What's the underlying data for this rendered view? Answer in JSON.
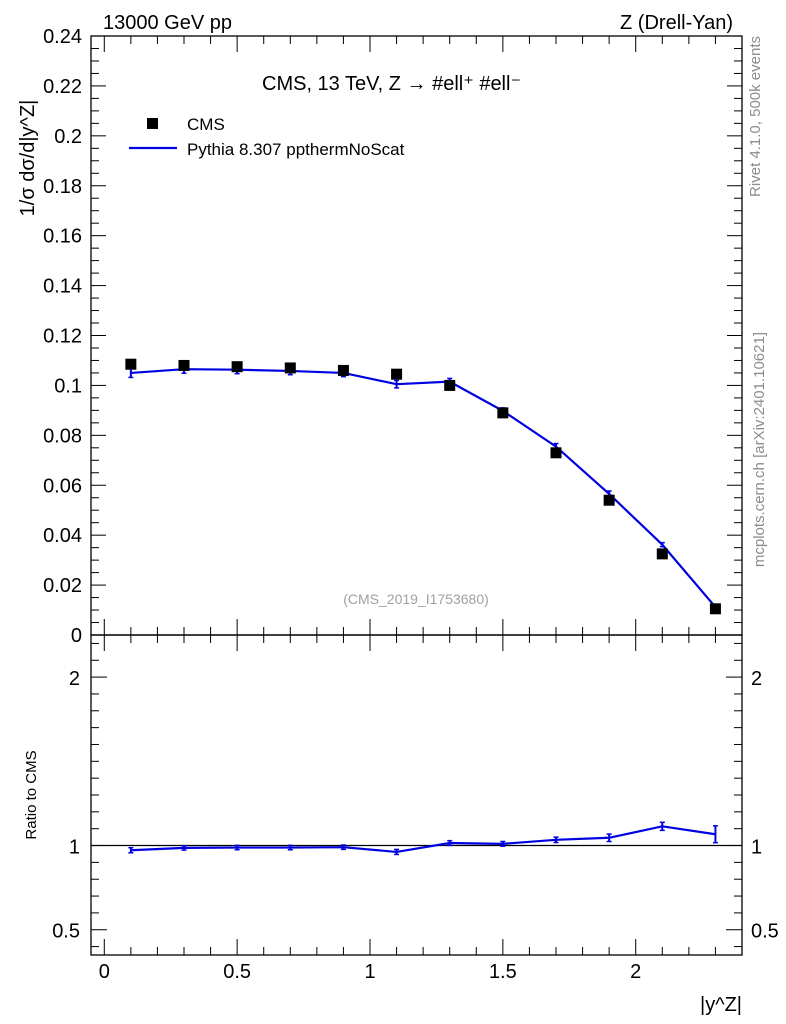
{
  "header": {
    "left": "13000 GeV pp",
    "right": "Z (Drell-Yan)"
  },
  "side": {
    "rivet": "Rivet 4.1.0,  500k events",
    "mcplots": "mcplots.cern.ch [arXiv:2401.10621]"
  },
  "chart_data": [
    {
      "type": "scatter",
      "title": "CMS, 13 TeV, Z →  #ell⁺ #ell⁻",
      "xlabel": "|y^Z|",
      "ylabel": "1/σ dσ/d|y^Z|",
      "xlim": [
        -0.05,
        2.4
      ],
      "ylim": [
        0,
        0.24
      ],
      "yticks": [
        {
          "v": 0,
          "label": "0"
        },
        {
          "v": 0.02,
          "label": "0.02"
        },
        {
          "v": 0.04,
          "label": "0.04"
        },
        {
          "v": 0.06,
          "label": "0.06"
        },
        {
          "v": 0.08,
          "label": "0.08"
        },
        {
          "v": 0.1,
          "label": "0.1"
        },
        {
          "v": 0.12,
          "label": "0.12"
        },
        {
          "v": 0.14,
          "label": "0.14"
        },
        {
          "v": 0.16,
          "label": "0.16"
        },
        {
          "v": 0.18,
          "label": "0.18"
        },
        {
          "v": 0.2,
          "label": "0.2"
        },
        {
          "v": 0.22,
          "label": "0.22"
        },
        {
          "v": 0.24,
          "label": "0.24"
        }
      ],
      "watermark": "(CMS_2019_I1753680)",
      "legend_placement": "top-left",
      "x": [
        0.1,
        0.3,
        0.5,
        0.7,
        0.9,
        1.1,
        1.3,
        1.5,
        1.7,
        1.9,
        2.1,
        2.3
      ],
      "series": [
        {
          "name": "CMS",
          "color": "#000000",
          "values": [
            0.1085,
            0.108,
            0.1075,
            0.107,
            0.106,
            0.1045,
            0.1,
            0.089,
            0.073,
            0.054,
            0.0325,
            0.0105
          ]
        },
        {
          "name": "Pythia 8.307 ppthermNoScat",
          "color": "#0000e0",
          "values": [
            0.105,
            0.1065,
            0.1063,
            0.1058,
            0.105,
            0.1005,
            0.1015,
            0.0898,
            0.0755,
            0.0565,
            0.0362,
            0.0112
          ],
          "errors": [
            0.0018,
            0.0016,
            0.0016,
            0.0015,
            0.0015,
            0.0015,
            0.0013,
            0.0012,
            0.0012,
            0.0012,
            0.0008,
            0.0005
          ]
        }
      ]
    },
    {
      "type": "line",
      "ylabel": "Ratio to CMS",
      "xlabel": "|y^Z|",
      "xlim": [
        -0.05,
        2.4
      ],
      "ylim": [
        0.35,
        2.25
      ],
      "yticks": [
        {
          "v": 0.5,
          "label": "0.5"
        },
        {
          "v": 1,
          "label": "1"
        },
        {
          "v": 2,
          "label": "2"
        }
      ],
      "xticks": [
        {
          "v": 0,
          "label": "0"
        },
        {
          "v": 0.5,
          "label": "0.5"
        },
        {
          "v": 1,
          "label": "1"
        },
        {
          "v": 1.5,
          "label": "1.5"
        },
        {
          "v": 2,
          "label": "2"
        }
      ],
      "reference": 1,
      "x": [
        0.1,
        0.3,
        0.5,
        0.7,
        0.9,
        1.1,
        1.3,
        1.5,
        1.7,
        1.9,
        2.1,
        2.3
      ],
      "series": [
        {
          "name": "Pythia 8.307 ppthermNoScat",
          "color": "#0000e0",
          "values": [
            0.972,
            0.986,
            0.988,
            0.988,
            0.99,
            0.962,
            1.015,
            1.01,
            1.034,
            1.046,
            1.114,
            1.067
          ],
          "errors": [
            0.015,
            0.013,
            0.013,
            0.013,
            0.013,
            0.015,
            0.014,
            0.014,
            0.016,
            0.022,
            0.024,
            0.05
          ]
        }
      ]
    }
  ]
}
